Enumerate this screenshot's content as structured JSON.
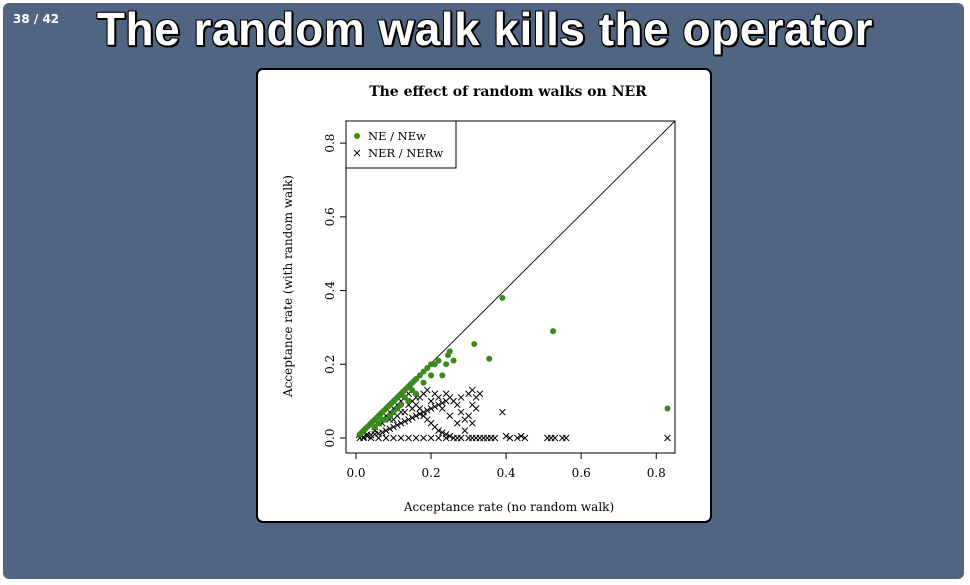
{
  "slide": {
    "counter": "38 / 42",
    "title": "The random walk kills the operator",
    "background": "#506582"
  },
  "chart_data": {
    "type": "scatter",
    "title": "The effect of random walks on NER",
    "xlabel": "Acceptance rate (no random walk)",
    "ylabel": "Acceptance rate (with random walk)",
    "xlim": [
      0,
      0.85
    ],
    "ylim": [
      0,
      0.86
    ],
    "xticks": [
      "0.0",
      "0.2",
      "0.4",
      "0.6",
      "0.8"
    ],
    "yticks": [
      "0.0",
      "0.2",
      "0.4",
      "0.6",
      "0.8"
    ],
    "diagonal_reference_line": true,
    "grid": false,
    "legend_position": "top-left",
    "series": [
      {
        "name": "NE / NEw",
        "marker": "filled-circle",
        "color": "#3a8a1e",
        "points": [
          [
            0.01,
            0.01
          ],
          [
            0.015,
            0.015
          ],
          [
            0.02,
            0.02
          ],
          [
            0.025,
            0.025
          ],
          [
            0.03,
            0.03
          ],
          [
            0.035,
            0.035
          ],
          [
            0.04,
            0.04
          ],
          [
            0.045,
            0.045
          ],
          [
            0.05,
            0.05
          ],
          [
            0.055,
            0.055
          ],
          [
            0.06,
            0.06
          ],
          [
            0.065,
            0.065
          ],
          [
            0.07,
            0.07
          ],
          [
            0.075,
            0.075
          ],
          [
            0.08,
            0.08
          ],
          [
            0.085,
            0.085
          ],
          [
            0.09,
            0.09
          ],
          [
            0.095,
            0.095
          ],
          [
            0.1,
            0.1
          ],
          [
            0.105,
            0.105
          ],
          [
            0.11,
            0.11
          ],
          [
            0.115,
            0.115
          ],
          [
            0.12,
            0.12
          ],
          [
            0.125,
            0.125
          ],
          [
            0.13,
            0.13
          ],
          [
            0.135,
            0.135
          ],
          [
            0.14,
            0.14
          ],
          [
            0.145,
            0.145
          ],
          [
            0.15,
            0.15
          ],
          [
            0.155,
            0.155
          ],
          [
            0.16,
            0.16
          ],
          [
            0.17,
            0.17
          ],
          [
            0.18,
            0.18
          ],
          [
            0.19,
            0.19
          ],
          [
            0.2,
            0.2
          ],
          [
            0.21,
            0.2
          ],
          [
            0.22,
            0.21
          ],
          [
            0.23,
            0.17
          ],
          [
            0.24,
            0.2
          ],
          [
            0.25,
            0.235
          ],
          [
            0.26,
            0.21
          ],
          [
            0.245,
            0.225
          ],
          [
            0.355,
            0.215
          ],
          [
            0.315,
            0.255
          ],
          [
            0.39,
            0.38
          ],
          [
            0.525,
            0.29
          ],
          [
            0.83,
            0.08
          ],
          [
            0.06,
            0.04
          ],
          [
            0.08,
            0.05
          ],
          [
            0.1,
            0.07
          ],
          [
            0.12,
            0.09
          ],
          [
            0.14,
            0.1
          ],
          [
            0.09,
            0.06
          ],
          [
            0.11,
            0.08
          ],
          [
            0.13,
            0.11
          ],
          [
            0.07,
            0.05
          ],
          [
            0.05,
            0.03
          ],
          [
            0.16,
            0.12
          ],
          [
            0.18,
            0.15
          ],
          [
            0.2,
            0.17
          ],
          [
            0.15,
            0.13
          ]
        ]
      },
      {
        "name": "NER / NERw",
        "marker": "cross",
        "color": "#000000",
        "points": [
          [
            0.01,
            0.0
          ],
          [
            0.02,
            0.003
          ],
          [
            0.03,
            0.005
          ],
          [
            0.04,
            0.008
          ],
          [
            0.05,
            0.01
          ],
          [
            0.06,
            0.012
          ],
          [
            0.07,
            0.015
          ],
          [
            0.08,
            0.02
          ],
          [
            0.09,
            0.025
          ],
          [
            0.1,
            0.03
          ],
          [
            0.11,
            0.035
          ],
          [
            0.12,
            0.04
          ],
          [
            0.13,
            0.045
          ],
          [
            0.14,
            0.05
          ],
          [
            0.15,
            0.055
          ],
          [
            0.16,
            0.06
          ],
          [
            0.17,
            0.065
          ],
          [
            0.18,
            0.07
          ],
          [
            0.19,
            0.075
          ],
          [
            0.2,
            0.08
          ],
          [
            0.21,
            0.085
          ],
          [
            0.22,
            0.09
          ],
          [
            0.23,
            0.095
          ],
          [
            0.24,
            0.1
          ],
          [
            0.05,
            0.03
          ],
          [
            0.06,
            0.04
          ],
          [
            0.07,
            0.05
          ],
          [
            0.08,
            0.06
          ],
          [
            0.09,
            0.07
          ],
          [
            0.1,
            0.08
          ],
          [
            0.11,
            0.09
          ],
          [
            0.12,
            0.1
          ],
          [
            0.13,
            0.11
          ],
          [
            0.14,
            0.12
          ],
          [
            0.15,
            0.1
          ],
          [
            0.16,
            0.09
          ],
          [
            0.17,
            0.08
          ],
          [
            0.18,
            0.06
          ],
          [
            0.19,
            0.05
          ],
          [
            0.2,
            0.04
          ],
          [
            0.21,
            0.03
          ],
          [
            0.22,
            0.02
          ],
          [
            0.23,
            0.015
          ],
          [
            0.24,
            0.01
          ],
          [
            0.25,
            0.005
          ],
          [
            0.26,
            0.0
          ],
          [
            0.27,
            0.0
          ],
          [
            0.28,
            0.0
          ],
          [
            0.1,
            0.0
          ],
          [
            0.12,
            0.0
          ],
          [
            0.14,
            0.0
          ],
          [
            0.16,
            0.0
          ],
          [
            0.18,
            0.0
          ],
          [
            0.2,
            0.0
          ],
          [
            0.22,
            0.0
          ],
          [
            0.24,
            0.0
          ],
          [
            0.3,
            0.12
          ],
          [
            0.31,
            0.13
          ],
          [
            0.32,
            0.11
          ],
          [
            0.33,
            0.12
          ],
          [
            0.31,
            0.09
          ],
          [
            0.32,
            0.08
          ],
          [
            0.3,
            0.06
          ],
          [
            0.31,
            0.04
          ],
          [
            0.3,
            0.0
          ],
          [
            0.31,
            0.0
          ],
          [
            0.32,
            0.0
          ],
          [
            0.33,
            0.0
          ],
          [
            0.34,
            0.0
          ],
          [
            0.35,
            0.0
          ],
          [
            0.36,
            0.0
          ],
          [
            0.37,
            0.0
          ],
          [
            0.39,
            0.07
          ],
          [
            0.4,
            0.005
          ],
          [
            0.41,
            0.0
          ],
          [
            0.43,
            0.0
          ],
          [
            0.44,
            0.005
          ],
          [
            0.45,
            0.0
          ],
          [
            0.51,
            0.0
          ],
          [
            0.52,
            0.0
          ],
          [
            0.53,
            0.0
          ],
          [
            0.55,
            0.0
          ],
          [
            0.56,
            0.0
          ],
          [
            0.83,
            0.0
          ],
          [
            0.26,
            0.1
          ],
          [
            0.27,
            0.09
          ],
          [
            0.28,
            0.07
          ],
          [
            0.29,
            0.05
          ],
          [
            0.25,
            0.11
          ],
          [
            0.24,
            0.12
          ],
          [
            0.22,
            0.11
          ],
          [
            0.2,
            0.1
          ],
          [
            0.15,
            0.08
          ],
          [
            0.13,
            0.07
          ],
          [
            0.11,
            0.06
          ],
          [
            0.09,
            0.05
          ],
          [
            0.07,
            0.04
          ],
          [
            0.05,
            0.02
          ],
          [
            0.03,
            0.01
          ],
          [
            0.04,
            0.0
          ],
          [
            0.06,
            0.0
          ],
          [
            0.08,
            0.0
          ],
          [
            0.02,
            0.0
          ],
          [
            0.19,
            0.13
          ],
          [
            0.21,
            0.12
          ],
          [
            0.23,
            0.08
          ],
          [
            0.25,
            0.06
          ],
          [
            0.27,
            0.04
          ],
          [
            0.29,
            0.02
          ],
          [
            0.28,
            0.11
          ],
          [
            0.17,
            0.11
          ],
          [
            0.12,
            0.07
          ],
          [
            0.1,
            0.05
          ],
          [
            0.14,
            0.09
          ],
          [
            0.16,
            0.11
          ],
          [
            0.18,
            0.12
          ]
        ]
      }
    ]
  }
}
